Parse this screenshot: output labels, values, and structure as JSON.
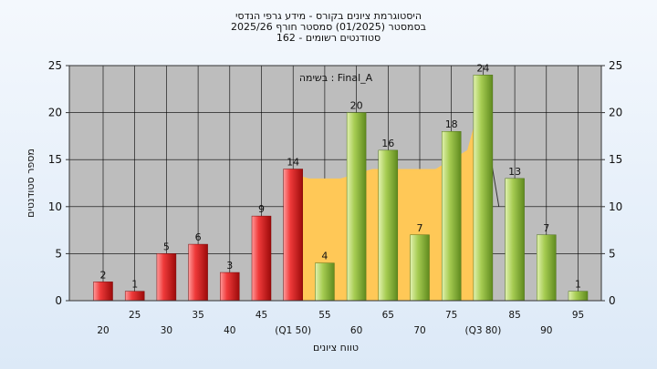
{
  "chart_data": {
    "type": "bar",
    "title_lines": [
      "היסטוגרמת ציונים בקורס - מידע גרפי הנדסי",
      "בסמסטר  (01/2025)  סמסטר חורף 2025/26",
      "162 - סטודנטים רשומים"
    ],
    "annotation": "בשימה : Final_A",
    "xlabel": "טווח ציונים",
    "ylabel": "מספר סטודנטים",
    "ylim": [
      0,
      25
    ],
    "yticks": [
      0,
      5,
      10,
      15,
      20,
      25
    ],
    "bins": [
      20,
      25,
      30,
      35,
      40,
      45,
      50,
      55,
      60,
      65,
      70,
      75,
      80,
      85,
      90,
      95
    ],
    "tick_labels": [
      "20",
      "25",
      "30",
      "35",
      "40",
      "45",
      "(Q1 50)",
      "55",
      "60",
      "65",
      "70",
      "75",
      "(Q3 80)",
      "85",
      "90",
      "95"
    ],
    "values": [
      2,
      1,
      5,
      6,
      3,
      9,
      14,
      4,
      20,
      16,
      7,
      18,
      24,
      13,
      7,
      1
    ],
    "groups": [
      "low",
      "low",
      "low",
      "low",
      "low",
      "low",
      "low",
      "high",
      "high",
      "high",
      "high",
      "high",
      "high",
      "high",
      "high",
      "high"
    ],
    "interquartile_band": {
      "x": [
        50,
        52.5,
        57.5,
        62.5,
        67.5,
        72.5,
        77.5,
        80
      ],
      "y": [
        13.5,
        13,
        13,
        14,
        14,
        14,
        16,
        22
      ]
    },
    "trend_line": {
      "x": [
        80,
        82.5
      ],
      "y": [
        20,
        10
      ]
    },
    "colors": {
      "low": "#e02424",
      "high": "#93bd3d",
      "band": "#ffc857",
      "plot_bg": "#bdbdbd",
      "grid": "#000000"
    },
    "grid": true
  }
}
